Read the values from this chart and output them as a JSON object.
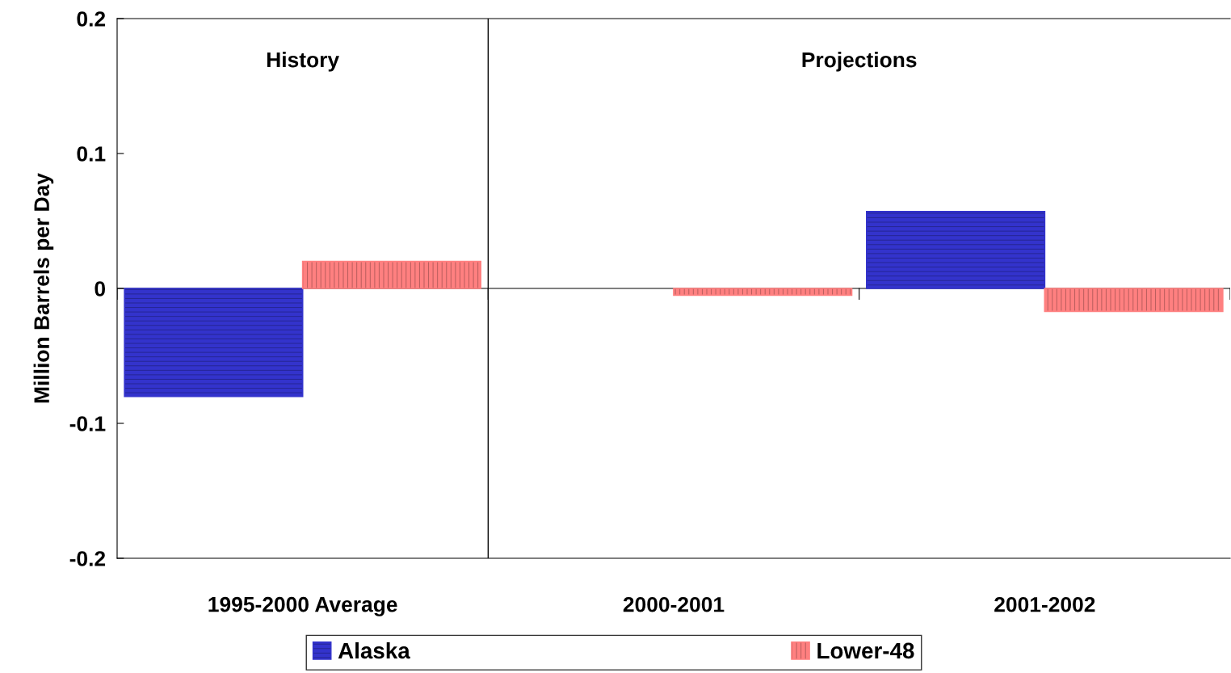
{
  "chart_data": {
    "type": "bar",
    "ylabel": "Million Barrels per Day",
    "categories": [
      "1995-2000 Average",
      "2000-2001",
      "2001-2002"
    ],
    "series": [
      {
        "name": "Alaska",
        "color": "#3333cc",
        "values": [
          -0.08,
          0,
          0.057
        ]
      },
      {
        "name": "Lower-48",
        "color": "#ff8080",
        "values": [
          0.02,
          -0.005,
          -0.017
        ]
      }
    ],
    "ylim": [
      -0.2,
      0.2
    ],
    "yticks": [
      -0.2,
      -0.1,
      0,
      0.1,
      0.2
    ],
    "legend": "bottom",
    "annotations": [
      "History",
      "Projections"
    ]
  }
}
